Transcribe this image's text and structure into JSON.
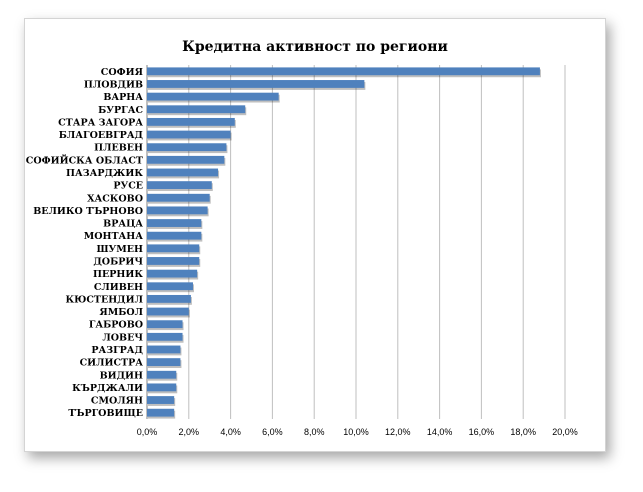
{
  "chart_data": {
    "type": "bar",
    "orientation": "horizontal",
    "title": "Кредитна активност по региони",
    "categories": [
      "СОФИЯ",
      "ПЛОВДИВ",
      "ВАРНА",
      "БУРГАС",
      "СТАРА ЗАГОРА",
      "БЛАГОЕВГРАД",
      "ПЛЕВЕН",
      "СОФИЙСКА ОБЛАСТ",
      "ПАЗАРДЖИК",
      "РУСЕ",
      "ХАСКОВО",
      "ВЕЛИКО ТЪРНОВО",
      "ВРАЦА",
      "МОНТАНА",
      "ШУМЕН",
      "ДОБРИЧ",
      "ПЕРНИК",
      "СЛИВЕН",
      "КЮСТЕНДИЛ",
      "ЯМБОЛ",
      "ГАБРОВО",
      "ЛОВЕЧ",
      "РАЗГРАД",
      "СИЛИСТРА",
      "ВИДИН",
      "КЪРДЖАЛИ",
      "СМОЛЯН",
      "ТЪРГОВИЩЕ"
    ],
    "values": [
      18.8,
      10.4,
      6.3,
      4.7,
      4.2,
      4.0,
      3.8,
      3.7,
      3.4,
      3.1,
      3.0,
      2.9,
      2.6,
      2.6,
      2.5,
      2.5,
      2.4,
      2.2,
      2.1,
      2.0,
      1.7,
      1.7,
      1.6,
      1.6,
      1.4,
      1.4,
      1.3,
      1.3
    ],
    "xlim": [
      0,
      20
    ],
    "xticks": [
      "0,0%",
      "2,0%",
      "4,0%",
      "6,0%",
      "8,0%",
      "10,0%",
      "12,0%",
      "14,0%",
      "16,0%",
      "18,0%",
      "20,0%"
    ],
    "grid": true,
    "bar_color": "#4F81BD"
  }
}
